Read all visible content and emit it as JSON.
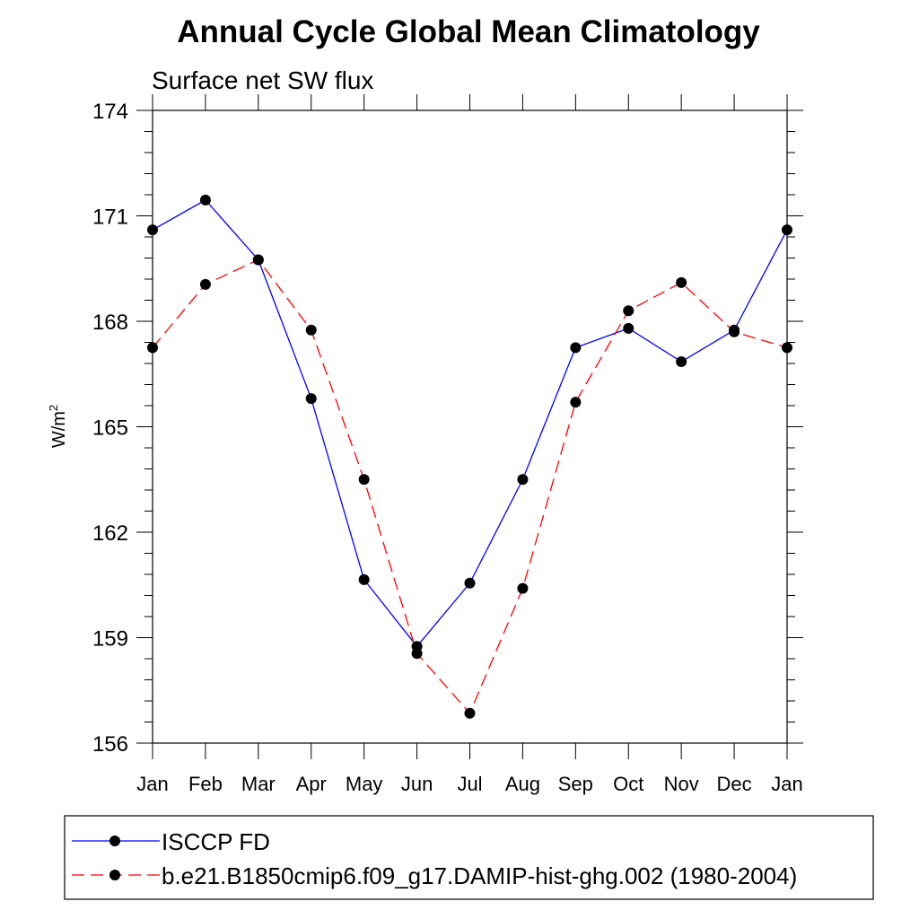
{
  "chart_data": {
    "type": "line",
    "title": "Annual Cycle Global Mean Climatology",
    "subtitle": "Surface net SW flux",
    "ylabel": "W/m",
    "ylabel_sup": "2",
    "xlabel": "",
    "categories": [
      "Jan",
      "Feb",
      "Mar",
      "Apr",
      "May",
      "Jun",
      "Jul",
      "Aug",
      "Sep",
      "Oct",
      "Nov",
      "Dec",
      "Jan"
    ],
    "ylim": [
      156,
      174
    ],
    "yticks": [
      156,
      159,
      162,
      165,
      168,
      171,
      174
    ],
    "grid": false,
    "legend_position": "bottom",
    "series": [
      {
        "name": "ISCCP FD",
        "color": "#0000ff",
        "dash": "solid",
        "marker": "filled-circle",
        "values": [
          170.6,
          171.45,
          169.75,
          165.8,
          160.65,
          158.75,
          160.55,
          163.5,
          167.25,
          167.8,
          166.85,
          167.75,
          170.6
        ]
      },
      {
        "name": "b.e21.B1850cmip6.f09_g17.DAMIP-hist-ghg.002 (1980-2004)",
        "color": "#ff0000",
        "dash": "dashed",
        "marker": "filled-circle",
        "values": [
          167.25,
          169.05,
          169.75,
          167.75,
          163.5,
          158.55,
          156.85,
          160.4,
          165.7,
          168.3,
          169.1,
          167.7,
          167.25
        ]
      }
    ]
  }
}
